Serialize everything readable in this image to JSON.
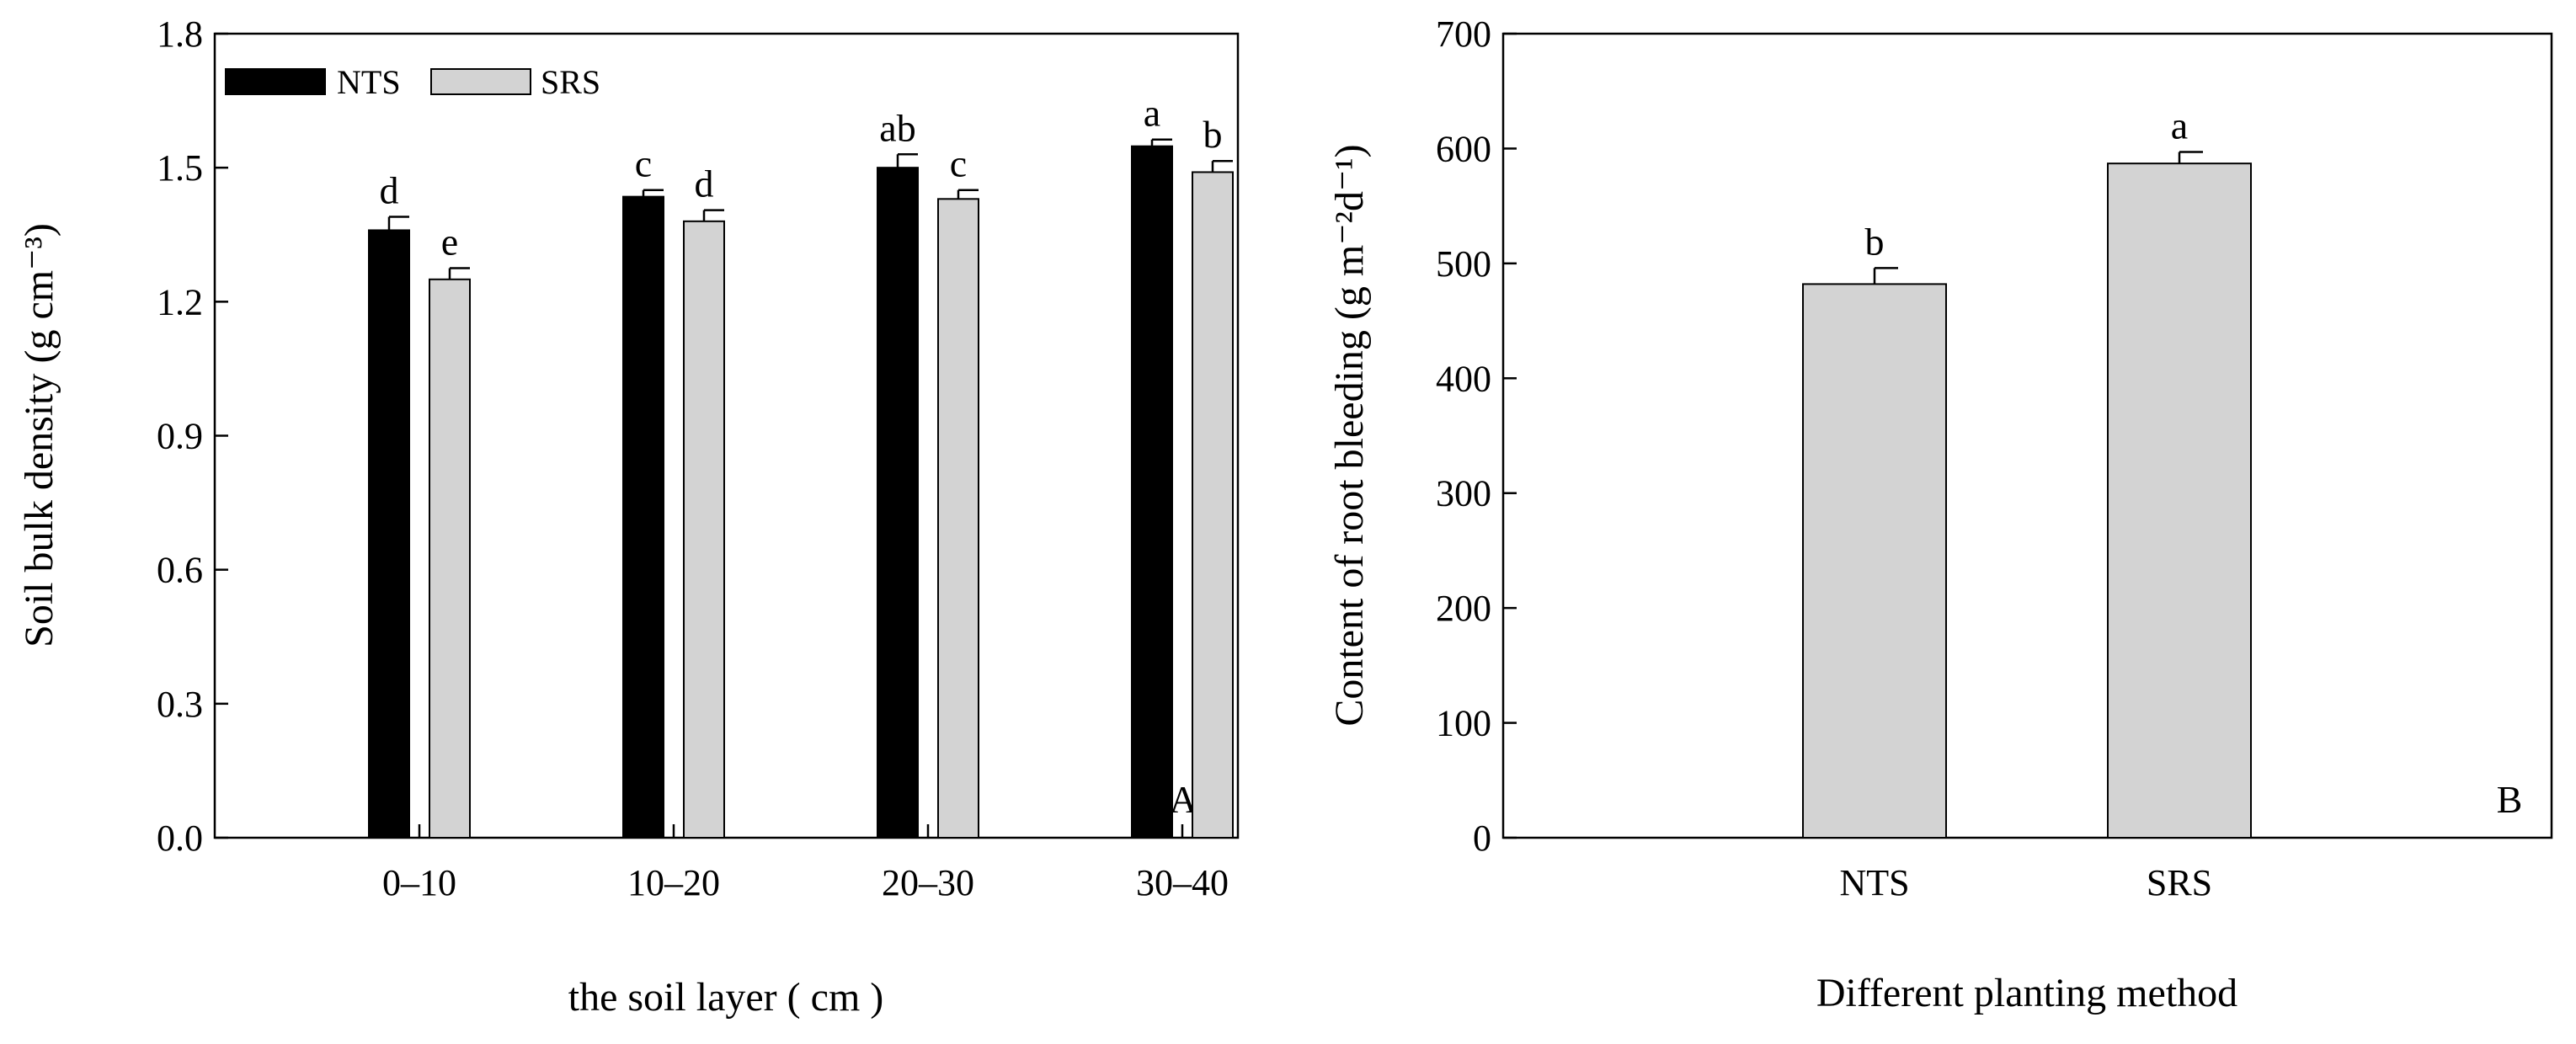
{
  "chart_data": [
    {
      "panel": "A",
      "type": "bar",
      "panel_label": "A",
      "categories": [
        "0–10",
        "10–20",
        "20–30",
        "30–40"
      ],
      "series": [
        {
          "name": "NTS",
          "color": "#000000",
          "values": [
            1.36,
            1.435,
            1.5,
            1.548
          ],
          "errors": [
            0.03,
            0.015,
            0.03,
            0.015
          ],
          "letters": [
            "d",
            "c",
            "ab",
            "a"
          ]
        },
        {
          "name": "SRS",
          "color": "#d3d3d3",
          "values": [
            1.25,
            1.38,
            1.43,
            1.49
          ],
          "errors": [
            0.025,
            0.025,
            0.02,
            0.025
          ],
          "letters": [
            "e",
            "d",
            "c",
            "b"
          ]
        }
      ],
      "xlabel": "the soil layer ( cm )",
      "ylabel": "Soil bulk density (g cm⁻³)",
      "ylim": [
        0,
        1.8
      ],
      "yticks": [
        0,
        0.3,
        0.6,
        0.9,
        1.2,
        1.5,
        1.8
      ],
      "ytick_labels": [
        "0.0",
        "0.3",
        "0.6",
        "0.9",
        "1.2",
        "1.5",
        "1.8"
      ],
      "legend": "top-left"
    },
    {
      "panel": "B",
      "type": "bar",
      "panel_label": "B",
      "categories": [
        "NTS",
        "SRS"
      ],
      "series": [
        {
          "name": "Content of root bleeding",
          "color": "#d3d3d3",
          "values": [
            482,
            587
          ],
          "errors": [
            14,
            10
          ],
          "letters": [
            "b",
            "a"
          ]
        }
      ],
      "xlabel": "Different planting method",
      "ylabel": "Content of root bleeding (g m⁻²d⁻¹)",
      "ylim": [
        0,
        700
      ],
      "yticks": [
        0,
        100,
        200,
        300,
        400,
        500,
        600,
        700
      ],
      "ytick_labels": [
        "0",
        "100",
        "200",
        "300",
        "400",
        "500",
        "600",
        "700"
      ]
    }
  ]
}
